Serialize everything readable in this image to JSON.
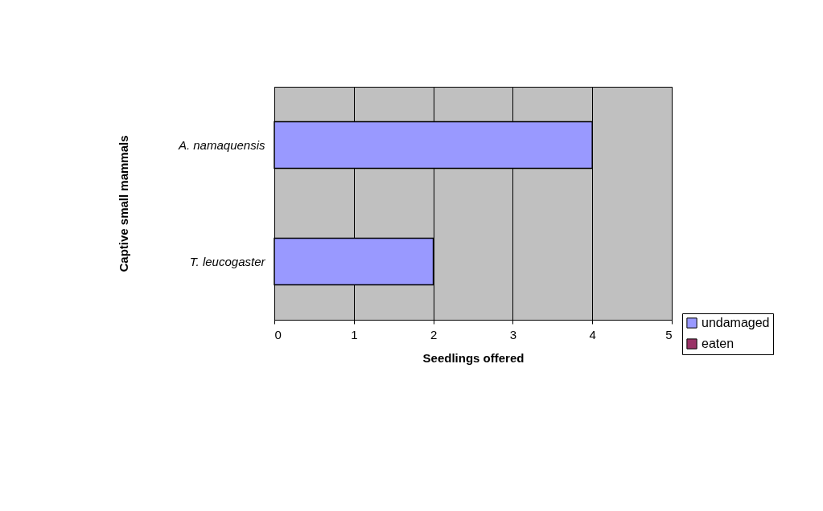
{
  "chart_data": {
    "type": "bar",
    "orientation": "horizontal",
    "categories": [
      "A. namaquensis",
      "T. leucogaster"
    ],
    "series": [
      {
        "name": "undamaged",
        "color": "#9999ff",
        "values": [
          4,
          2
        ]
      },
      {
        "name": "eaten",
        "color": "#993366",
        "values": [
          0,
          0
        ]
      }
    ],
    "xlabel": "Seedlings offered",
    "ylabel": "Captive small mammals",
    "xlim": [
      0,
      5
    ],
    "xticks": [
      0,
      1,
      2,
      3,
      4,
      5
    ],
    "grid": "x",
    "legend": "right"
  }
}
